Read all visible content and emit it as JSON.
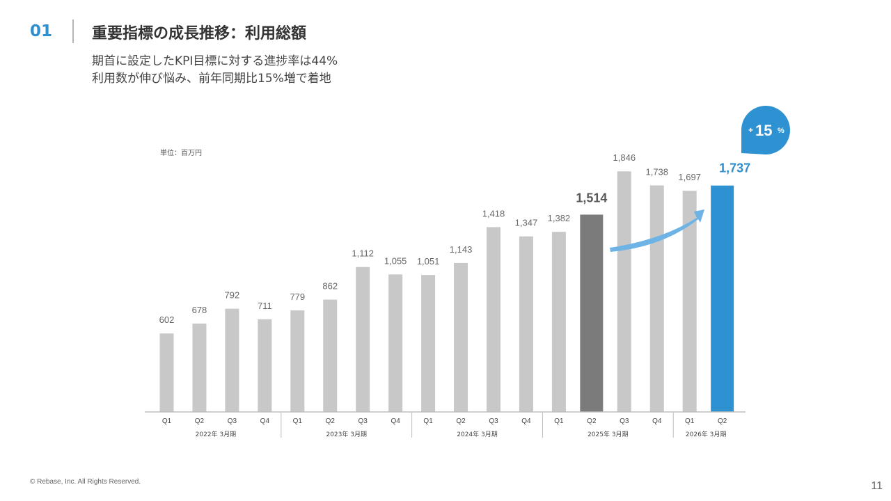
{
  "header": {
    "section_number": "01",
    "title": "重要指標の成長推移：利用総額"
  },
  "subtitle": {
    "line1": "期首に設定したKPI目標に対する進捗率は44%",
    "line2": "利用数が伸び悩み、前年同期比15%増で着地"
  },
  "colors": {
    "accent": "#2f8fcf",
    "bar_default": "#c8c8c8",
    "bar_highlight_prev": "#7b7b7b",
    "bar_highlight_current": "#2e91d1",
    "arrow": "#6db3e5"
  },
  "callout": {
    "plus": "+",
    "value": "15",
    "unit": "%"
  },
  "chart_data": {
    "type": "bar",
    "unit_label": "単位：百万円",
    "ylim": [
      0,
      2000
    ],
    "quarter_labels": [
      "Q1",
      "Q2",
      "Q3",
      "Q4",
      "Q1",
      "Q2",
      "Q3",
      "Q4",
      "Q1",
      "Q2",
      "Q3",
      "Q4",
      "Q1",
      "Q2",
      "Q3",
      "Q4",
      "Q1",
      "Q2"
    ],
    "values": [
      602,
      678,
      792,
      711,
      779,
      862,
      1112,
      1055,
      1051,
      1143,
      1418,
      1347,
      1382,
      1514,
      1846,
      1738,
      1697,
      1737
    ],
    "value_labels": [
      "602",
      "678",
      "792",
      "711",
      "779",
      "862",
      "1,112",
      "1,055",
      "1,051",
      "1,143",
      "1,418",
      "1,347",
      "1,382",
      "1,514",
      "1,846",
      "1,738",
      "1,697",
      "1,737"
    ],
    "highlight": {
      "previous_year_index": 13,
      "current_index": 17
    },
    "groups": [
      {
        "label": "2022年 3月期",
        "start": 0,
        "end": 3
      },
      {
        "label": "2023年 3月期",
        "start": 4,
        "end": 7
      },
      {
        "label": "2024年 3月期",
        "start": 8,
        "end": 11
      },
      {
        "label": "2025年 3月期",
        "start": 12,
        "end": 15
      },
      {
        "label": "2026年 3月期",
        "start": 16,
        "end": 17
      }
    ],
    "grid": false,
    "legend": "none"
  },
  "footer": {
    "copyright": "© Rebase, Inc. All Rights Reserved.",
    "page_number": "11"
  }
}
